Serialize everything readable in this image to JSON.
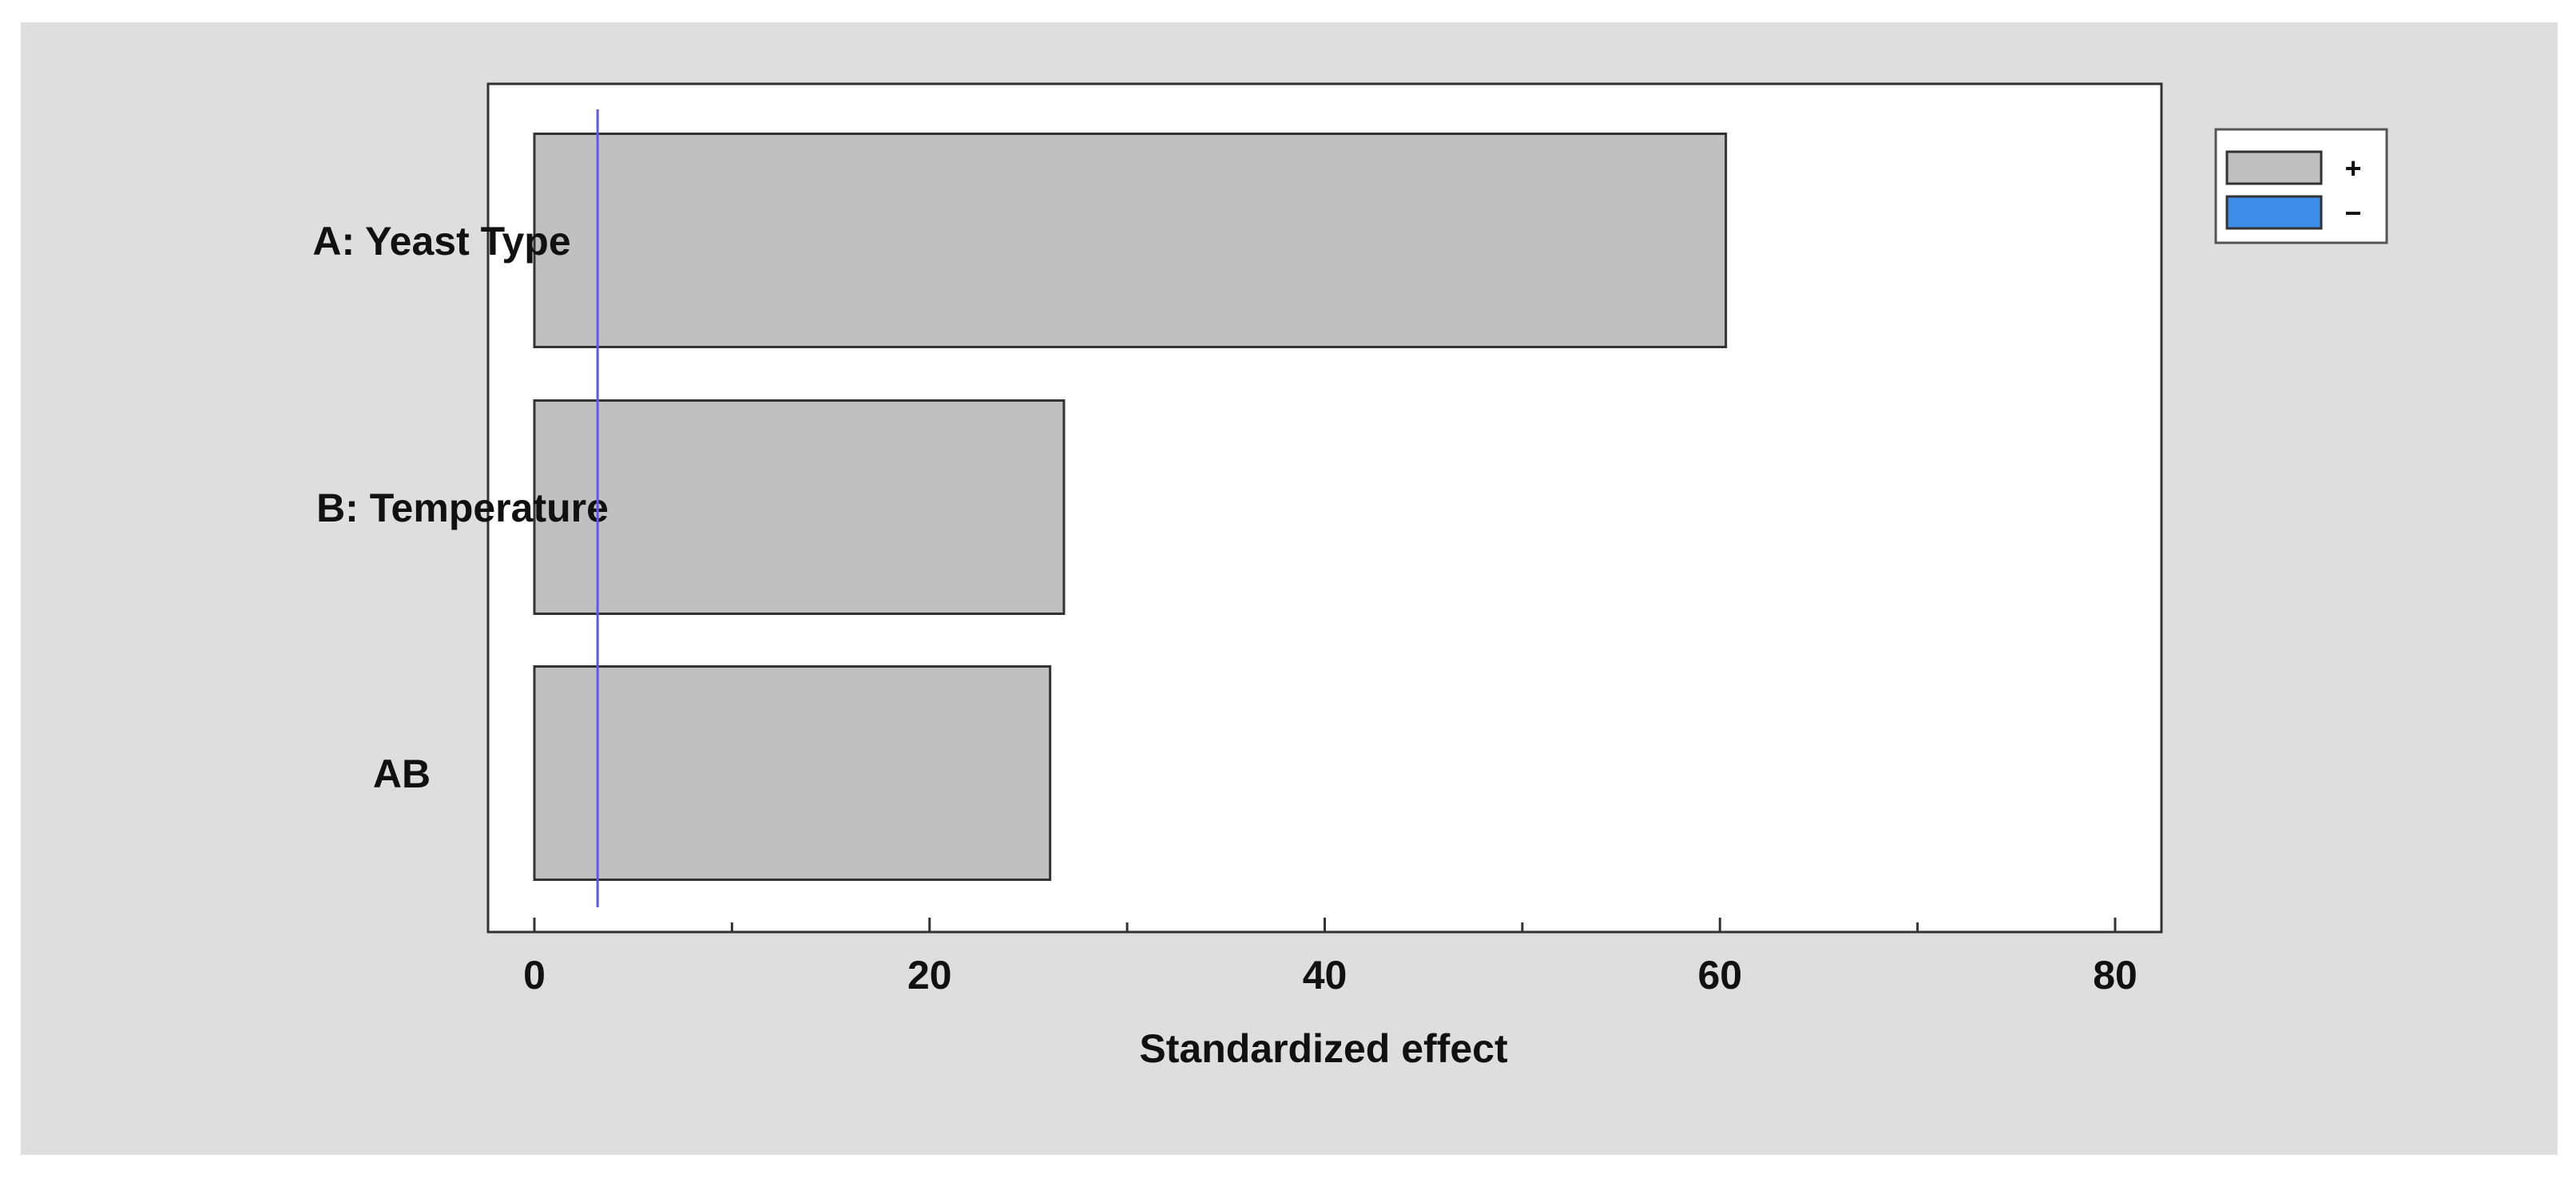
{
  "chart_data": {
    "type": "bar",
    "orientation": "horizontal",
    "title": "",
    "xlabel": "Standardized effect",
    "ylabel": "",
    "categories": [
      "A: Yeast Type",
      "B: Temperature",
      "AB"
    ],
    "series": [
      {
        "name": "+",
        "values": [
          60.3,
          26.8,
          26.1
        ],
        "color": "#c0c0c0"
      }
    ],
    "reference_line": {
      "value": 3.2,
      "color": "#5a5af0"
    },
    "xlim": [
      0,
      80
    ],
    "xticks": [
      "0",
      "20",
      "40",
      "60",
      "80"
    ],
    "grid": false,
    "legend": {
      "placement": "top-right-outside",
      "entries": [
        {
          "label": "+",
          "color": "#c0c0c0"
        },
        {
          "label": "−",
          "color": "#3d8ee8"
        }
      ]
    }
  },
  "colors": {
    "figure_background": "#dedede",
    "plot_background": "#ffffff",
    "bar_edge": "#333333"
  }
}
